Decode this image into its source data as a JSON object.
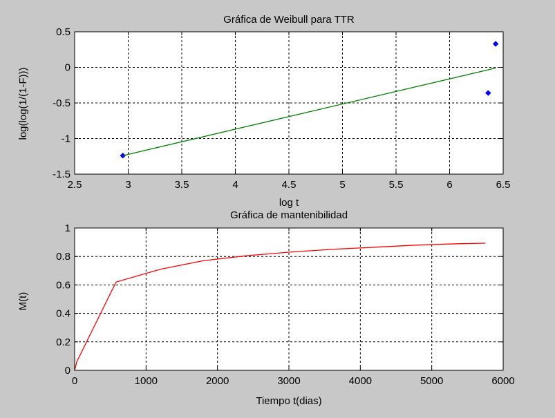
{
  "chart_data": [
    {
      "type": "scatter",
      "title": "Gráfica de Weibull para TTR",
      "xlabel": "log t",
      "ylabel": "log(log(1/(1-F)))",
      "xlim": [
        2.5,
        6.5
      ],
      "ylim": [
        -1.5,
        0.5
      ],
      "xticks": [
        "2.5",
        "3",
        "3.5",
        "4",
        "4.5",
        "5",
        "5.5",
        "6",
        "6.5"
      ],
      "yticks": [
        "-1.5",
        "-1",
        "-0.5",
        "0",
        "0.5"
      ],
      "grid": true,
      "series": [
        {
          "kind": "points",
          "color": "#0000ff",
          "marker": "diamond",
          "points": [
            [
              2.95,
              -1.24
            ],
            [
              6.36,
              -0.36
            ],
            [
              6.43,
              0.33
            ]
          ]
        },
        {
          "kind": "line",
          "color": "#008000",
          "points": [
            [
              2.95,
              -1.24
            ],
            [
              6.43,
              -0.01
            ]
          ]
        }
      ]
    },
    {
      "type": "line",
      "title": "Gráfica de mantenibilidad",
      "xlabel": "Tiempo t(dias)",
      "ylabel": "M(t)",
      "xlim": [
        0,
        6000
      ],
      "ylim": [
        0,
        1
      ],
      "xticks": [
        "0",
        "1000",
        "2000",
        "3000",
        "4000",
        "5000",
        "6000"
      ],
      "yticks": [
        "0",
        "0.2",
        "0.4",
        "0.6",
        "0.8",
        "1"
      ],
      "grid": true,
      "series": [
        {
          "kind": "line",
          "color": "#ff0000",
          "points": [
            [
              0,
              0.0
            ],
            [
              30,
              0.06
            ],
            [
              580,
              0.62
            ],
            [
              1200,
              0.71
            ],
            [
              1800,
              0.77
            ],
            [
              2400,
              0.805
            ],
            [
              3000,
              0.83
            ],
            [
              3600,
              0.85
            ],
            [
              4200,
              0.865
            ],
            [
              4800,
              0.88
            ],
            [
              5400,
              0.89
            ],
            [
              5750,
              0.893
            ]
          ]
        }
      ]
    }
  ]
}
